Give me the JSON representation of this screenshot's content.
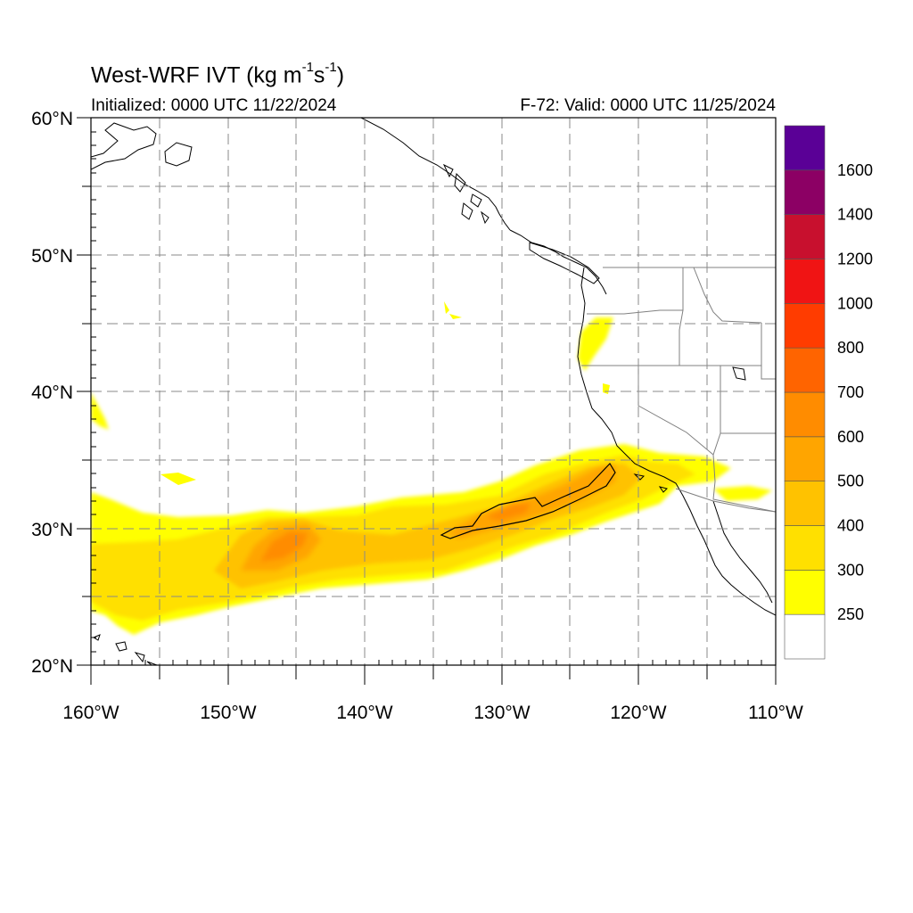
{
  "header": {
    "title_main": "West-WRF IVT (kg m",
    "title_exp1": "-1",
    "title_mid": "s",
    "title_exp2": "-1",
    "title_end": ")",
    "initialized": "Initialized: 0000 UTC 11/22/2024",
    "valid": "F-72: Valid: 0000 UTC 11/25/2024"
  },
  "map": {
    "lon_range": [
      -160,
      -110
    ],
    "lat_range": [
      20,
      60
    ],
    "lat_labels": [
      "60°N",
      "50°N",
      "40°N",
      "30°N",
      "20°N"
    ],
    "lon_labels": [
      "160°W",
      "150°W",
      "140°W",
      "130°W",
      "120°W",
      "110°W"
    ],
    "gridlines": "dashed every 5°"
  },
  "colorbar": {
    "labels": [
      "250",
      "300",
      "400",
      "500",
      "600",
      "700",
      "800",
      "1000",
      "1200",
      "1400",
      "1600"
    ],
    "colors": [
      "#ffffff",
      "#ffff00",
      "#ffe000",
      "#ffc200",
      "#ffa500",
      "#ff8c00",
      "#ff6400",
      "#ff3c00",
      "#f01414",
      "#c8102e",
      "#8c0064",
      "#5a0096"
    ]
  }
}
